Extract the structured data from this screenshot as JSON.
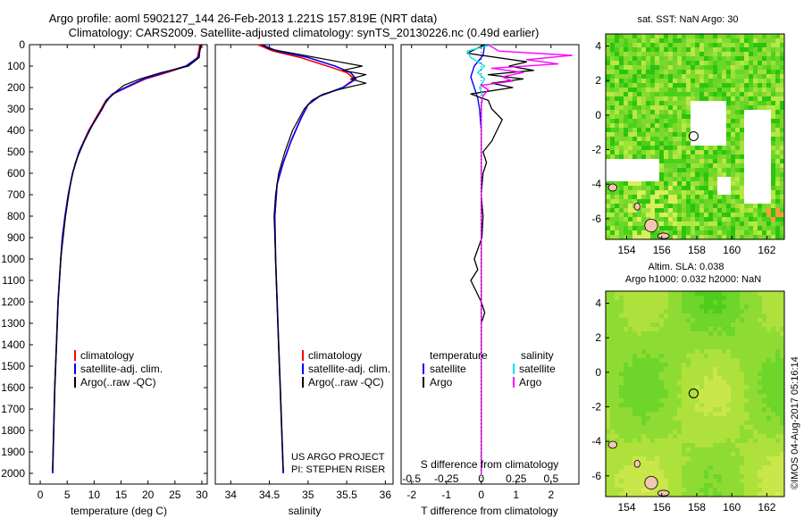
{
  "header": {
    "title_line1": "Argo profile: aoml 5902127_144 26-Feb-2013 1.221S 157.819E (NRT data)",
    "title_line2": "Climatology: CARS2009. Satellite-adjusted climatology: synTS_20130226.nc (0.49d earlier)"
  },
  "colors": {
    "climatology": "#ff0000",
    "satellite_adj": "#0000ff",
    "argo": "#000000",
    "salinity_satellite": "#00e5ee",
    "salinity_argo": "#ff00ff",
    "land": "#f2c6b0",
    "no_data": "#ffffff"
  },
  "credit": "©IMOS 04-Aug-2017 05:16:14",
  "chart_data": [
    {
      "id": "temperature",
      "type": "line",
      "xlabel": "temperature (deg C)",
      "ylabel": "",
      "xlim": [
        -2,
        31
      ],
      "ylim": [
        2050,
        0
      ],
      "xticks": [
        0,
        5,
        10,
        15,
        20,
        25,
        30
      ],
      "yticks": [
        0,
        100,
        200,
        300,
        400,
        500,
        600,
        700,
        800,
        900,
        1000,
        1100,
        1200,
        1300,
        1400,
        1500,
        1600,
        1700,
        1800,
        1900,
        2000
      ],
      "legend": [
        "climatology",
        "satellite-adj. clim.",
        "Argo(..raw -QC)"
      ],
      "series": [
        {
          "name": "climatology",
          "color": "#ff0000",
          "width": 1.6,
          "depth": [
            0,
            20,
            60,
            100,
            130,
            160,
            200,
            230,
            260,
            300,
            400,
            500,
            600,
            700,
            800,
            900,
            1000,
            1200,
            1400,
            1600,
            1800,
            2000
          ],
          "value": [
            29.6,
            29.5,
            29.2,
            27.2,
            23.5,
            19.5,
            16.0,
            13.5,
            12.2,
            11.3,
            9.0,
            7.2,
            6.0,
            5.2,
            4.6,
            4.1,
            3.8,
            3.3,
            3.0,
            2.7,
            2.5,
            2.3
          ]
        },
        {
          "name": "satellite-adj. clim.",
          "color": "#0000ff",
          "width": 1.6,
          "depth": [
            0,
            20,
            60,
            100,
            130,
            160,
            200,
            230,
            260,
            300,
            400,
            500,
            600,
            700,
            800,
            900,
            1000,
            1200,
            1400,
            1600,
            1800,
            2000
          ],
          "value": [
            29.8,
            29.7,
            29.3,
            27.0,
            23.0,
            19.2,
            15.8,
            13.4,
            12.3,
            11.5,
            9.1,
            7.2,
            6.0,
            5.2,
            4.6,
            4.1,
            3.8,
            3.3,
            3.0,
            2.7,
            2.5,
            2.3
          ]
        },
        {
          "name": "Argo(..raw -QC)",
          "color": "#000000",
          "width": 1.2,
          "depth": [
            0,
            10,
            60,
            100,
            130,
            160,
            190,
            220,
            250,
            280,
            350,
            450,
            550,
            650,
            800,
            1000,
            1200,
            1400,
            1600,
            1800,
            1990
          ],
          "value": [
            29.7,
            29.7,
            29.5,
            27.5,
            22.5,
            18.5,
            15.5,
            14.0,
            12.8,
            11.9,
            10.2,
            8.2,
            6.5,
            5.6,
            4.7,
            3.8,
            3.3,
            3.0,
            2.7,
            2.5,
            2.3
          ]
        }
      ]
    },
    {
      "id": "salinity",
      "type": "line",
      "xlabel": "salinity",
      "ylabel": "",
      "xlim": [
        33.8,
        36.1
      ],
      "ylim": [
        2050,
        0
      ],
      "xticks": [
        34,
        34.5,
        35,
        35.5,
        36
      ],
      "legend": [
        "climatology",
        "satellite-adj. clim.",
        "Argo(..raw -QC)"
      ],
      "annotation": [
        "US ARGO PROJECT",
        "PI: STEPHEN RISER"
      ],
      "series": [
        {
          "name": "climatology",
          "color": "#ff0000",
          "width": 1.6,
          "depth": [
            0,
            30,
            60,
            100,
            130,
            160,
            200,
            240,
            280,
            350,
            450,
            550,
            650,
            800,
            1000,
            1200,
            1400,
            1600,
            1800,
            2000
          ],
          "value": [
            34.35,
            34.55,
            34.9,
            35.25,
            35.5,
            35.6,
            35.45,
            35.15,
            35.0,
            34.9,
            34.78,
            34.68,
            34.6,
            34.57,
            34.58,
            34.6,
            34.62,
            34.64,
            34.66,
            34.68
          ]
        },
        {
          "name": "satellite-adj. clim.",
          "color": "#0000ff",
          "width": 1.6,
          "depth": [
            0,
            30,
            60,
            100,
            130,
            160,
            200,
            240,
            280,
            350,
            450,
            550,
            650,
            800,
            1000,
            1200,
            1400,
            1600,
            1800,
            2000
          ],
          "value": [
            34.4,
            34.6,
            35.0,
            35.35,
            35.55,
            35.62,
            35.45,
            35.15,
            35.0,
            34.9,
            34.78,
            34.68,
            34.6,
            34.57,
            34.58,
            34.6,
            34.62,
            34.64,
            34.66,
            34.68
          ]
        },
        {
          "name": "Argo(..raw -QC)",
          "color": "#000000",
          "width": 1.2,
          "depth": [
            0,
            20,
            50,
            80,
            100,
            120,
            140,
            160,
            180,
            200,
            230,
            260,
            300,
            400,
            500,
            600,
            700,
            800,
            1000,
            1200,
            1400,
            1600,
            1800,
            1990
          ],
          "value": [
            34.4,
            34.5,
            34.95,
            35.4,
            35.7,
            35.45,
            35.75,
            35.55,
            35.75,
            35.5,
            35.2,
            35.05,
            34.95,
            34.8,
            34.7,
            34.62,
            34.58,
            34.56,
            34.58,
            34.6,
            34.62,
            34.64,
            34.66,
            34.68
          ]
        }
      ]
    },
    {
      "id": "differences",
      "type": "line",
      "xlabel_top": "S difference from climatology",
      "xlabel": "T difference from climatology",
      "xlim": [
        -2.3,
        2.8
      ],
      "ylim": [
        2050,
        0
      ],
      "xticks_bottom": [
        -2,
        -1,
        0,
        1,
        2
      ],
      "xticks_top_labels": [
        "-0.5",
        "-0.25",
        "0",
        "0.25",
        "0.5"
      ],
      "xticks_top_values": [
        -0.5,
        -0.25,
        0,
        0.25,
        0.5
      ],
      "s_scale_factor": 4,
      "legend_temperature_title": "temperature",
      "legend_salinity_title": "salinity",
      "legend": [
        "satellite",
        "Argo",
        "satellite",
        "Argo"
      ],
      "series": [
        {
          "name": "temperature satellite",
          "color": "#0000ff",
          "width": 1.4,
          "depth": [
            0,
            50,
            100,
            150,
            200,
            250,
            300,
            400,
            600,
            800,
            1000,
            1500,
            2000
          ],
          "value": [
            0.1,
            0.05,
            -0.2,
            -0.3,
            -0.2,
            -0.1,
            -0.05,
            0,
            0,
            0,
            0,
            0,
            0
          ]
        },
        {
          "name": "temperature Argo",
          "color": "#000000",
          "width": 1.3,
          "depth": [
            0,
            40,
            80,
            100,
            120,
            140,
            160,
            180,
            200,
            230,
            260,
            300,
            350,
            400,
            450,
            500,
            550,
            600,
            700,
            800,
            900,
            1000,
            1050,
            1100,
            1150,
            1200,
            1250,
            1300,
            1400,
            1600,
            1800,
            1990
          ],
          "value": [
            0.1,
            -0.4,
            1.3,
            0.8,
            1.5,
            0.2,
            1.2,
            0.3,
            0.9,
            -0.3,
            0.2,
            0.3,
            0.6,
            0.45,
            0.3,
            0.05,
            0.15,
            0.05,
            0,
            0.05,
            0.02,
            -0.2,
            -0.1,
            -0.3,
            -0.15,
            0,
            0.1,
            0,
            0,
            0,
            0,
            0
          ]
        },
        {
          "name": "salinity satellite",
          "color": "#00e5ee",
          "width": 1.4,
          "depth": [
            0,
            30,
            60,
            100,
            130,
            160,
            200,
            240,
            280,
            350,
            500,
            800,
            1200,
            1600,
            2000
          ],
          "value": [
            0.3,
            -0.4,
            -0.3,
            0.1,
            -0.1,
            0.1,
            -0.05,
            0.05,
            0,
            0,
            0,
            0,
            0,
            0,
            0
          ]
        },
        {
          "name": "salinity Argo",
          "color": "#ff00ff",
          "width": 1.4,
          "depth": [
            0,
            30,
            50,
            70,
            90,
            110,
            130,
            150,
            170,
            190,
            210,
            240,
            280,
            350,
            500,
            800,
            1200,
            1600,
            2000
          ],
          "value": [
            0.2,
            0.5,
            2.6,
            1.3,
            2.2,
            0.3,
            1.2,
            0.6,
            0.9,
            0.0,
            0.2,
            0.05,
            0,
            0,
            0,
            0,
            0,
            0,
            0
          ]
        }
      ]
    },
    {
      "id": "sst_map",
      "type": "heatmap",
      "title": "sat. SST: NaN Argo: 30",
      "xlim": [
        152.8,
        163.0
      ],
      "ylim": [
        -7.2,
        4.7
      ],
      "xticks": [
        154,
        156,
        158,
        160,
        162
      ],
      "yticks": [
        4,
        2,
        0,
        -2,
        -4,
        -6
      ],
      "argo_position": {
        "lon": 157.819,
        "lat": -1.221
      },
      "field": "patchy green/yellow SST with white no-data gaps"
    },
    {
      "id": "sla_map",
      "type": "heatmap",
      "title_line1": "Altim. SLA: 0.038",
      "title_line2": "Argo h1000: 0.032 h2000: NaN",
      "xlim": [
        152.8,
        163.0
      ],
      "ylim": [
        -7.2,
        4.7
      ],
      "xticks": [
        154,
        156,
        158,
        160,
        162
      ],
      "yticks": [
        4,
        2,
        0,
        -2,
        -4,
        -6
      ],
      "argo_position": {
        "lon": 157.819,
        "lat": -1.221
      },
      "field": "smooth green/yellow sea level anomaly"
    }
  ]
}
